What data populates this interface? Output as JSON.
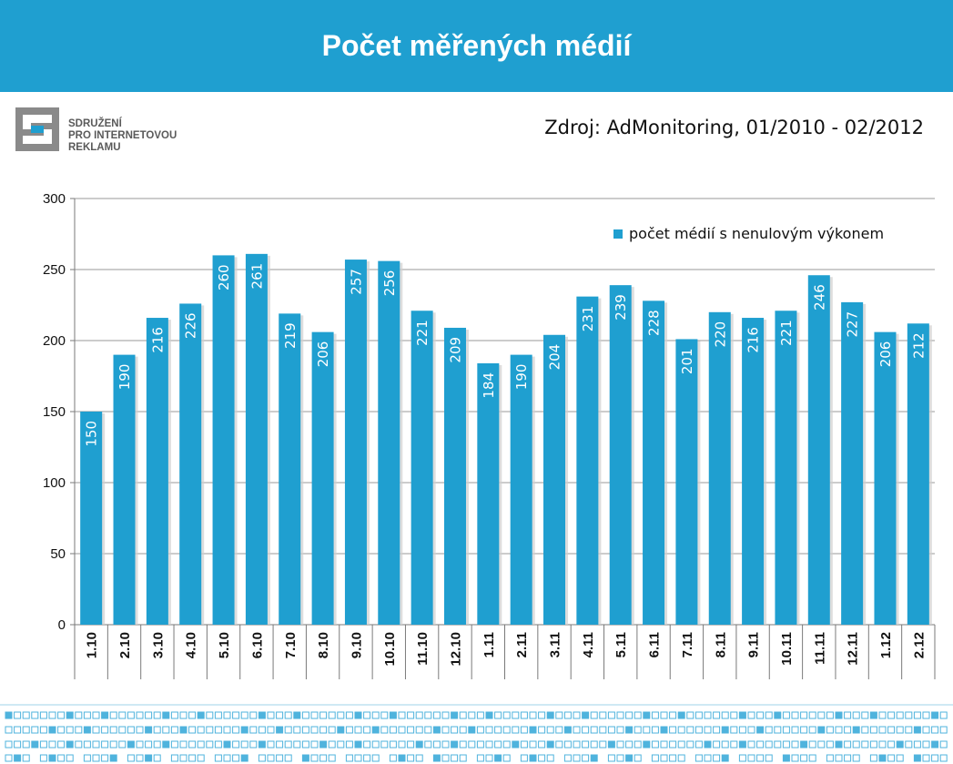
{
  "header": {
    "title": "Počet měřených médií"
  },
  "logo": {
    "line1": "SDRUŽENÍ",
    "line2": "PRO INTERNETOVOU",
    "line3": "REKLAMU"
  },
  "source": "Zdroj: AdMonitoring, 01/2010 - 02/2012",
  "colors": {
    "accent": "#1f9fd0",
    "bar": "#1f9fd0",
    "grid": "#9a9a9a"
  },
  "chart_data": {
    "type": "bar",
    "categories": [
      "1.10",
      "2.10",
      "3.10",
      "4.10",
      "5.10",
      "6.10",
      "7.10",
      "8.10",
      "9.10",
      "10.10",
      "11.10",
      "12.10",
      "1.11",
      "2.11",
      "3.11",
      "4.11",
      "5.11",
      "6.11",
      "7.11",
      "8.11",
      "9.11",
      "10.11",
      "11.11",
      "12.11",
      "1.12",
      "2.12"
    ],
    "series": [
      {
        "name": "počet médií s nenulovým výkonem",
        "values": [
          150,
          190,
          216,
          226,
          260,
          261,
          219,
          206,
          257,
          256,
          221,
          209,
          184,
          190,
          204,
          231,
          239,
          228,
          201,
          220,
          216,
          221,
          246,
          227,
          206,
          212
        ]
      }
    ],
    "yticks": [
      "0",
      "50",
      "100",
      "150",
      "200",
      "250",
      "300"
    ],
    "ylim": [
      0,
      300
    ],
    "grid": true,
    "legend": "top-right",
    "data_labels": true
  }
}
